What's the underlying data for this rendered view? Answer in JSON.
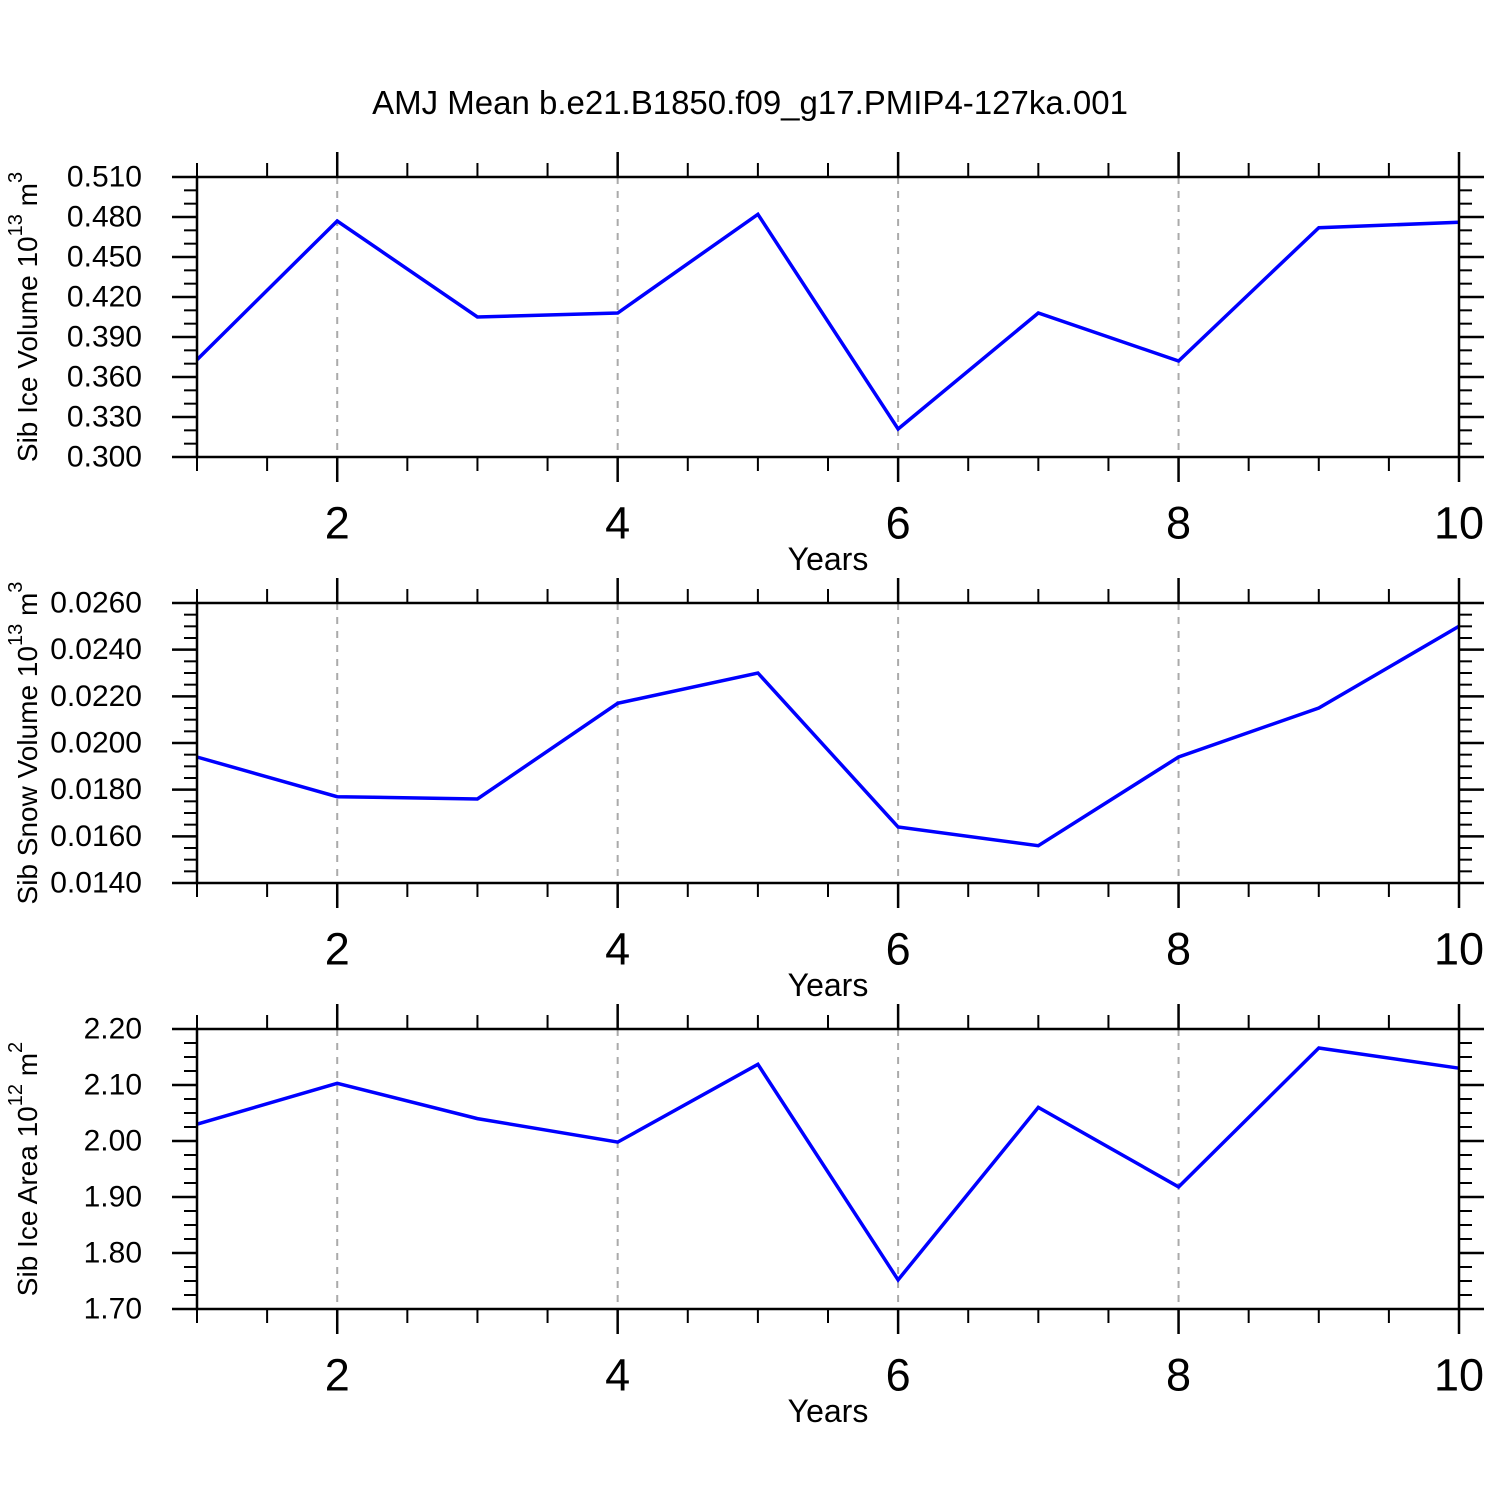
{
  "title": "AMJ Mean b.e21.B1850.f09_g17.PMIP4-127ka.001",
  "colors": {
    "line": "#0000ff",
    "grid": "#aaaaaa",
    "axis": "#000000",
    "text": "#000000",
    "background": "#ffffff"
  },
  "x_axis": {
    "label": "Years",
    "range": [
      1,
      10
    ],
    "major_ticks": [
      2,
      4,
      6,
      8,
      10
    ],
    "minor_step": 0.5,
    "grid_years": [
      2,
      4,
      6,
      8
    ]
  },
  "chart_data": [
    {
      "type": "line",
      "name": "sib-ice-volume",
      "ylabel": {
        "prefix": "Sib Ice Volume 10",
        "sup1": "13",
        "mid": " m",
        "sup2": "3"
      },
      "x": [
        1,
        2,
        3,
        4,
        5,
        6,
        7,
        8,
        9,
        10
      ],
      "values": [
        0.373,
        0.477,
        0.405,
        0.408,
        0.482,
        0.321,
        0.408,
        0.372,
        0.472,
        0.476
      ],
      "ylim": [
        0.3,
        0.51
      ],
      "yticks": [
        "0.300",
        "0.330",
        "0.360",
        "0.390",
        "0.420",
        "0.450",
        "0.480",
        "0.510"
      ],
      "y_minor_per_major": 2,
      "xlabel": "Years",
      "xticks": [
        2,
        4,
        6,
        8,
        10
      ],
      "grid": "vertical-dashed",
      "legend": "none"
    },
    {
      "type": "line",
      "name": "sib-snow-volume",
      "ylabel": {
        "prefix": "Sib Snow Volume 10",
        "sup1": "13",
        "mid": " m",
        "sup2": "3"
      },
      "x": [
        1,
        2,
        3,
        4,
        5,
        6,
        7,
        8,
        9,
        10
      ],
      "values": [
        0.0194,
        0.0177,
        0.0176,
        0.0217,
        0.023,
        0.0164,
        0.0156,
        0.0194,
        0.0215,
        0.025
      ],
      "ylim": [
        0.014,
        0.026
      ],
      "yticks": [
        "0.0140",
        "0.0160",
        "0.0180",
        "0.0200",
        "0.0220",
        "0.0240",
        "0.0260"
      ],
      "y_minor_per_major": 3,
      "xlabel": "Years",
      "xticks": [
        2,
        4,
        6,
        8,
        10
      ],
      "grid": "vertical-dashed",
      "legend": "none"
    },
    {
      "type": "line",
      "name": "sib-ice-area",
      "ylabel": {
        "prefix": "Sib Ice Area 10",
        "sup1": "12",
        "mid": " m",
        "sup2": "2"
      },
      "x": [
        1,
        2,
        3,
        4,
        5,
        6,
        7,
        8,
        9,
        10
      ],
      "values": [
        2.03,
        2.103,
        2.04,
        1.998,
        2.137,
        1.752,
        2.06,
        1.918,
        2.166,
        2.13
      ],
      "ylim": [
        1.7,
        2.2
      ],
      "yticks": [
        "1.70",
        "1.80",
        "1.90",
        "2.00",
        "2.10",
        "2.20"
      ],
      "y_minor_per_major": 3,
      "xlabel": "Years",
      "xticks": [
        2,
        4,
        6,
        8,
        10
      ],
      "grid": "vertical-dashed",
      "legend": "none"
    }
  ]
}
